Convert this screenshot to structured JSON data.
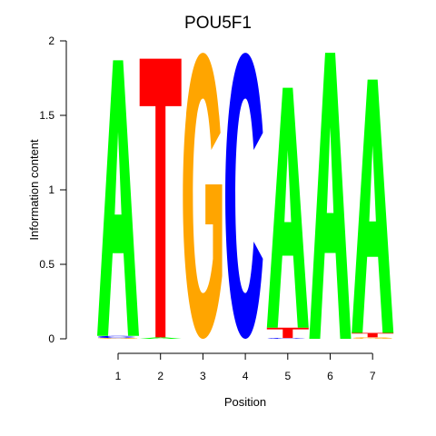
{
  "chart_data": {
    "type": "sequence-logo",
    "title": "POU5F1",
    "xlabel": "Position",
    "ylabel": "Information content",
    "ylim": [
      0,
      2
    ],
    "yticks": [
      "0",
      "0.5",
      "1",
      "1.5",
      "2"
    ],
    "positions": [
      "1",
      "2",
      "3",
      "4",
      "5",
      "6",
      "7"
    ],
    "colors": {
      "A": "#00ff00",
      "C": "#0000ff",
      "G": "#ffa500",
      "T": "#ff0000"
    },
    "stacks": [
      [
        {
          "letter": "G",
          "height": 0.005
        },
        {
          "letter": "C",
          "height": 0.015
        },
        {
          "letter": "A",
          "height": 1.85
        }
      ],
      [
        {
          "letter": "A",
          "height": 0.01
        },
        {
          "letter": "T",
          "height": 1.87
        }
      ],
      [
        {
          "letter": "G",
          "height": 1.92
        }
      ],
      [
        {
          "letter": "C",
          "height": 1.92
        }
      ],
      [
        {
          "letter": "C",
          "height": 0.005
        },
        {
          "letter": "T",
          "height": 0.07
        },
        {
          "letter": "A",
          "height": 1.61
        }
      ],
      [
        {
          "letter": "A",
          "height": 1.92
        }
      ],
      [
        {
          "letter": "G",
          "height": 0.01
        },
        {
          "letter": "T",
          "height": 0.03
        },
        {
          "letter": "A",
          "height": 1.7
        }
      ]
    ]
  }
}
